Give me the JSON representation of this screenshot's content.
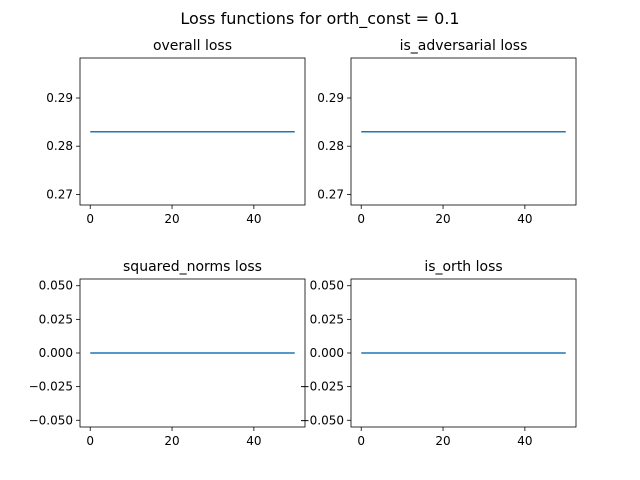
{
  "figure": {
    "suptitle": "Loss functions for orth_const = 0.1"
  },
  "colors": {
    "line": "#1f77b4",
    "axes": "#000000",
    "background": "#ffffff"
  },
  "chart_data": [
    {
      "type": "line",
      "title": "overall loss",
      "xlabel": "",
      "ylabel": "",
      "x": [
        0,
        50
      ],
      "y": [
        0.283,
        0.283
      ],
      "xlim": [
        -2.5,
        52.5
      ],
      "ylim": [
        0.2678,
        0.2983
      ],
      "xticks": [
        0,
        20,
        40
      ],
      "xticklabels": [
        "0",
        "20",
        "40"
      ],
      "yticks": [
        0.27,
        0.28,
        0.29
      ],
      "yticklabels": [
        "0.27",
        "0.28",
        "0.29"
      ],
      "grid": false
    },
    {
      "type": "line",
      "title": "is_adversarial loss",
      "xlabel": "",
      "ylabel": "",
      "x": [
        0,
        50
      ],
      "y": [
        0.283,
        0.283
      ],
      "xlim": [
        -2.5,
        52.5
      ],
      "ylim": [
        0.2678,
        0.2983
      ],
      "xticks": [
        0,
        20,
        40
      ],
      "xticklabels": [
        "0",
        "20",
        "40"
      ],
      "yticks": [
        0.27,
        0.28,
        0.29
      ],
      "yticklabels": [
        "0.27",
        "0.28",
        "0.29"
      ],
      "grid": false
    },
    {
      "type": "line",
      "title": "squared_norms loss",
      "xlabel": "",
      "ylabel": "",
      "x": [
        0,
        50
      ],
      "y": [
        0.0,
        0.0
      ],
      "xlim": [
        -2.5,
        52.5
      ],
      "ylim": [
        -0.055,
        0.055
      ],
      "xticks": [
        0,
        20,
        40
      ],
      "xticklabels": [
        "0",
        "20",
        "40"
      ],
      "yticks": [
        -0.05,
        -0.025,
        0.0,
        0.025,
        0.05
      ],
      "yticklabels": [
        "−0.050",
        "−0.025",
        "0.000",
        "0.025",
        "0.050"
      ],
      "grid": false
    },
    {
      "type": "line",
      "title": "is_orth loss",
      "xlabel": "",
      "ylabel": "",
      "x": [
        0,
        50
      ],
      "y": [
        0.0,
        0.0
      ],
      "xlim": [
        -2.5,
        52.5
      ],
      "ylim": [
        -0.055,
        0.055
      ],
      "xticks": [
        0,
        20,
        40
      ],
      "xticklabels": [
        "0",
        "20",
        "40"
      ],
      "yticks": [
        -0.05,
        -0.025,
        0.0,
        0.025,
        0.05
      ],
      "yticklabels": [
        "−0.050",
        "−0.025",
        "0.000",
        "0.025",
        "0.050"
      ],
      "grid": false
    }
  ]
}
